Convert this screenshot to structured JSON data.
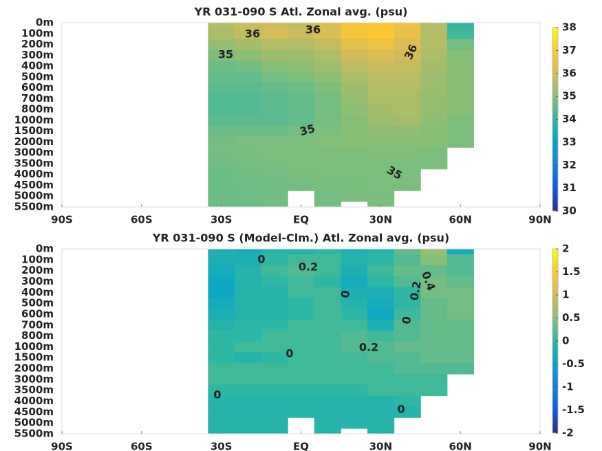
{
  "chart_data": [
    {
      "type": "heatmap",
      "title": "YR 031-090 S Atl. Zonal avg. (psu)",
      "x": [
        -30,
        -20,
        -10,
        0,
        10,
        20,
        30,
        40,
        50,
        60
      ],
      "xlim": [
        -90,
        90
      ],
      "xticks": [
        {
          "value": -90,
          "label": "90S"
        },
        {
          "value": -60,
          "label": "60S"
        },
        {
          "value": -30,
          "label": "30S"
        },
        {
          "value": 0,
          "label": "EQ"
        },
        {
          "value": 30,
          "label": "30N"
        },
        {
          "value": 60,
          "label": "60N"
        },
        {
          "value": 90,
          "label": "90N"
        }
      ],
      "y_categories": [
        "0m",
        "100m",
        "200m",
        "300m",
        "400m",
        "500m",
        "600m",
        "700m",
        "800m",
        "1000m",
        "1500m",
        "2000m",
        "3000m",
        "3500m",
        "4000m",
        "4500m",
        "5000m",
        "5500m"
      ],
      "z": [
        [
          35.6,
          35.9,
          36.0,
          35.8,
          36.2,
          36.8,
          37.0,
          36.6,
          35.6,
          34.0
        ],
        [
          35.5,
          35.8,
          36.1,
          35.9,
          36.2,
          36.8,
          37.0,
          36.5,
          35.6,
          34.2
        ],
        [
          35.2,
          35.4,
          35.6,
          35.6,
          35.8,
          36.4,
          36.6,
          36.2,
          35.6,
          34.8
        ],
        [
          34.9,
          35.1,
          35.3,
          35.3,
          35.5,
          36.0,
          36.2,
          36.0,
          35.5,
          35.0
        ],
        [
          34.7,
          34.8,
          35.0,
          35.1,
          35.3,
          35.7,
          35.9,
          35.8,
          35.4,
          35.0
        ],
        [
          34.6,
          34.6,
          34.8,
          34.9,
          35.1,
          35.5,
          35.7,
          35.7,
          35.3,
          35.0
        ],
        [
          34.5,
          34.5,
          34.6,
          34.7,
          34.9,
          35.3,
          35.6,
          35.6,
          35.3,
          35.0
        ],
        [
          34.4,
          34.4,
          34.5,
          34.6,
          34.8,
          35.2,
          35.5,
          35.5,
          35.2,
          35.0
        ],
        [
          34.4,
          34.4,
          34.5,
          34.6,
          34.8,
          35.1,
          35.4,
          35.5,
          35.2,
          35.0
        ],
        [
          34.5,
          34.5,
          34.5,
          34.6,
          34.8,
          35.0,
          35.3,
          35.4,
          35.1,
          34.9
        ],
        [
          34.7,
          34.7,
          34.7,
          34.8,
          34.9,
          35.0,
          35.1,
          35.1,
          35.0,
          34.9
        ],
        [
          34.8,
          34.9,
          34.9,
          34.9,
          34.95,
          35.0,
          35.0,
          35.0,
          35.0,
          34.9
        ],
        [
          34.8,
          34.85,
          34.9,
          34.9,
          34.9,
          34.9,
          34.95,
          34.95,
          34.9,
          null
        ],
        [
          34.75,
          34.8,
          34.85,
          34.9,
          34.9,
          34.9,
          34.9,
          34.9,
          34.9,
          null
        ],
        [
          34.7,
          34.75,
          34.8,
          34.85,
          34.88,
          34.88,
          34.88,
          34.9,
          null,
          null
        ],
        [
          34.7,
          34.72,
          34.75,
          34.8,
          34.85,
          34.85,
          34.88,
          34.9,
          null,
          null
        ],
        [
          34.7,
          34.72,
          34.75,
          null,
          34.8,
          34.85,
          34.85,
          null,
          null,
          null
        ],
        [
          34.7,
          34.72,
          34.75,
          null,
          34.8,
          null,
          34.85,
          null,
          null,
          null
        ]
      ],
      "zlim": [
        30,
        38
      ],
      "zticks": [
        30,
        31,
        32,
        33,
        34,
        35,
        36,
        37,
        38
      ],
      "contour_labels": [
        "36",
        "36",
        "35",
        "36",
        "35",
        "35"
      ]
    },
    {
      "type": "heatmap",
      "title": "YR 031-090 S (Model-Clm.) Atl. Zonal avg. (psu)",
      "x": [
        -30,
        -20,
        -10,
        0,
        10,
        20,
        30,
        40,
        50,
        60
      ],
      "xlim": [
        -90,
        90
      ],
      "xticks": [
        {
          "value": -90,
          "label": "90S"
        },
        {
          "value": -60,
          "label": "60S"
        },
        {
          "value": -30,
          "label": "30S"
        },
        {
          "value": 0,
          "label": "EQ"
        },
        {
          "value": 30,
          "label": "30N"
        },
        {
          "value": 60,
          "label": "60N"
        },
        {
          "value": 90,
          "label": "90N"
        }
      ],
      "y_categories": [
        "0m",
        "100m",
        "200m",
        "300m",
        "400m",
        "500m",
        "600m",
        "700m",
        "800m",
        "1000m",
        "1500m",
        "2000m",
        "3000m",
        "3500m",
        "4000m",
        "4500m",
        "5000m",
        "5500m"
      ],
      "z": [
        [
          -0.2,
          -0.3,
          -0.1,
          -0.1,
          0.0,
          -0.2,
          -0.1,
          0.3,
          0.6,
          -0.3
        ],
        [
          -0.2,
          -0.2,
          0.0,
          0.1,
          0.1,
          -0.1,
          0.0,
          0.2,
          0.5,
          0.2
        ],
        [
          -0.3,
          -0.1,
          0.1,
          0.2,
          0.1,
          -0.2,
          0.1,
          0.3,
          0.3,
          0.2
        ],
        [
          -0.4,
          -0.1,
          0.0,
          0.1,
          0.0,
          -0.3,
          0.0,
          0.2,
          0.4,
          0.3
        ],
        [
          -0.4,
          -0.1,
          -0.1,
          0.1,
          0.1,
          -0.2,
          -0.2,
          0.0,
          0.4,
          0.4
        ],
        [
          -0.3,
          -0.1,
          -0.1,
          0.0,
          0.1,
          -0.1,
          -0.3,
          0.0,
          0.3,
          0.4
        ],
        [
          -0.2,
          -0.1,
          -0.1,
          0.0,
          0.1,
          0.0,
          -0.4,
          0.1,
          0.3,
          0.4
        ],
        [
          -0.1,
          0.0,
          0.0,
          0.1,
          0.1,
          0.1,
          -0.2,
          0.2,
          0.3,
          0.3
        ],
        [
          0.0,
          0.0,
          0.1,
          0.1,
          0.1,
          0.2,
          0.1,
          0.2,
          0.3,
          0.3
        ],
        [
          0.0,
          0.1,
          0.1,
          0.1,
          0.1,
          0.2,
          0.2,
          0.3,
          0.3,
          0.3
        ],
        [
          0.0,
          -0.1,
          0.0,
          0.1,
          0.1,
          0.1,
          0.2,
          0.2,
          0.3,
          0.3
        ],
        [
          0.1,
          0.1,
          0.1,
          0.1,
          0.1,
          0.1,
          0.1,
          0.2,
          0.2,
          0.2
        ],
        [
          0.1,
          0.1,
          0.1,
          0.1,
          0.1,
          0.1,
          0.1,
          0.1,
          0.1,
          null
        ],
        [
          0.0,
          0.0,
          0.0,
          0.0,
          0.0,
          0.0,
          0.1,
          0.1,
          0.1,
          null
        ],
        [
          -0.1,
          -0.1,
          -0.1,
          -0.1,
          -0.1,
          -0.1,
          -0.1,
          0.0,
          null,
          null
        ],
        [
          -0.1,
          -0.1,
          -0.1,
          -0.1,
          -0.1,
          -0.1,
          -0.1,
          -0.1,
          null,
          null
        ],
        [
          -0.1,
          -0.1,
          -0.1,
          null,
          -0.1,
          -0.1,
          -0.1,
          null,
          null,
          null
        ],
        [
          -0.1,
          -0.1,
          -0.1,
          null,
          -0.1,
          null,
          -0.1,
          null,
          null,
          null
        ]
      ],
      "zlim": [
        -2,
        2
      ],
      "zticks": [
        -2,
        -1.5,
        -1,
        -0.5,
        0,
        0.5,
        1,
        1.5,
        2
      ],
      "contour_labels": [
        "0",
        "0.2",
        "0",
        "0.2",
        "0.4",
        "0",
        "0.2",
        "0",
        "0",
        "0"
      ]
    }
  ]
}
